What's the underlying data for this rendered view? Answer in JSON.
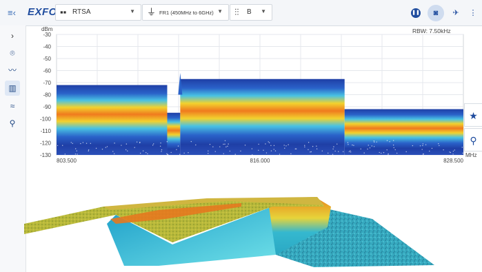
{
  "header": {
    "logo": "EXFO",
    "mode": {
      "label": "RTSA"
    },
    "band": {
      "label": "FR1 (450MHz to 6GHz)"
    },
    "beam": {
      "label": "B"
    }
  },
  "toolbar_icons": [
    "pause-icon",
    "camera-icon",
    "satellite-icon",
    "more-vertical-icon"
  ],
  "sidebar": {
    "items": [
      {
        "name": "expand-chevron",
        "icon": "chevron-right-icon"
      },
      {
        "name": "antenna",
        "icon": "antenna-icon"
      },
      {
        "name": "trace",
        "icon": "trace-icon"
      },
      {
        "name": "spectrum",
        "icon": "spectrum-icon",
        "active": true
      },
      {
        "name": "spectrogram",
        "icon": "spectrogram-icon"
      },
      {
        "name": "location",
        "icon": "location-pin-icon"
      }
    ]
  },
  "spectrum": {
    "unit_y": "dBm",
    "rbw": "RBW: 7.50kHz",
    "unit_x": "MHz",
    "y_ticks": [
      "-30",
      "-40",
      "-50",
      "-60",
      "-70",
      "-80",
      "-90",
      "-100",
      "-110",
      "-120",
      "-130"
    ],
    "x_ticks": [
      "803.500",
      "816.000",
      "828.500"
    ]
  },
  "chart_data": {
    "type": "heatmap",
    "x_unit": "MHz",
    "y_unit": "dBm",
    "xlim": [
      803.5,
      828.5
    ],
    "ylim": [
      -130,
      -30
    ],
    "x_ticks": [
      803.5,
      816.0,
      828.5
    ],
    "y_ticks": [
      -30,
      -40,
      -50,
      -60,
      -70,
      -80,
      -90,
      -100,
      -110,
      -120,
      -130
    ],
    "segments": [
      {
        "x_start": 803.5,
        "x_end": 810.3,
        "level_top": -72,
        "level_peak": -85
      },
      {
        "x_start": 810.3,
        "x_end": 811.1,
        "level_top": -95,
        "level_peak": -103
      },
      {
        "x_start": 811.1,
        "x_end": 821.2,
        "level_top": -67,
        "level_peak": -82
      },
      {
        "x_start": 821.2,
        "x_end": 828.5,
        "level_top": -92,
        "level_peak": -103
      }
    ],
    "colors": {
      "cold": "#1f3fa6",
      "mid": "#2fb3d9",
      "warm": "#f2d22e",
      "hot": "#f07a1e"
    }
  }
}
